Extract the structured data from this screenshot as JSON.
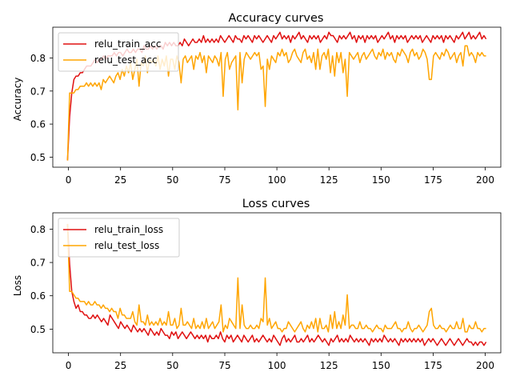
{
  "chart_data": [
    {
      "type": "line",
      "title": "Accuracy curves",
      "xlabel": "",
      "ylabel": "Accuracy",
      "xlim": [
        -6,
        207
      ],
      "ylim": [
        0.47,
        0.885
      ],
      "xticks": [
        0,
        25,
        50,
        75,
        100,
        125,
        150,
        175,
        200
      ],
      "yticks": [
        0.5,
        0.6,
        0.7,
        0.8
      ],
      "ytick_labels": [
        "0.5",
        "0.6",
        "0.7",
        "0.8"
      ],
      "grid": false,
      "legend_position": "top-left",
      "x": {
        "start": 1,
        "end": 200
      },
      "series": [
        {
          "name": "relu_train_acc",
          "color": "#e01010",
          "values": [
            0.49,
            0.62,
            0.69,
            0.73,
            0.74,
            0.74,
            0.75,
            0.75,
            0.76,
            0.77,
            0.77,
            0.77,
            0.78,
            0.79,
            0.78,
            0.79,
            0.79,
            0.8,
            0.79,
            0.8,
            0.8,
            0.8,
            0.81,
            0.8,
            0.81,
            0.81,
            0.8,
            0.81,
            0.82,
            0.81,
            0.81,
            0.82,
            0.81,
            0.82,
            0.82,
            0.81,
            0.83,
            0.82,
            0.82,
            0.83,
            0.82,
            0.83,
            0.82,
            0.83,
            0.83,
            0.82,
            0.84,
            0.83,
            0.84,
            0.83,
            0.84,
            0.83,
            0.83,
            0.84,
            0.83,
            0.85,
            0.84,
            0.83,
            0.84,
            0.85,
            0.84,
            0.84,
            0.85,
            0.84,
            0.86,
            0.84,
            0.85,
            0.84,
            0.85,
            0.84,
            0.85,
            0.84,
            0.86,
            0.85,
            0.84,
            0.85,
            0.86,
            0.85,
            0.84,
            0.86,
            0.85,
            0.85,
            0.84,
            0.86,
            0.85,
            0.86,
            0.85,
            0.84,
            0.86,
            0.85,
            0.86,
            0.85,
            0.84,
            0.85,
            0.86,
            0.85,
            0.84,
            0.86,
            0.85,
            0.86,
            0.87,
            0.85,
            0.86,
            0.85,
            0.86,
            0.84,
            0.86,
            0.85,
            0.86,
            0.87,
            0.85,
            0.86,
            0.85,
            0.84,
            0.86,
            0.85,
            0.86,
            0.85,
            0.86,
            0.84,
            0.85,
            0.86,
            0.85,
            0.87,
            0.86,
            0.86,
            0.85,
            0.84,
            0.86,
            0.85,
            0.86,
            0.85,
            0.86,
            0.87,
            0.85,
            0.86,
            0.84,
            0.86,
            0.85,
            0.86,
            0.84,
            0.86,
            0.85,
            0.86,
            0.85,
            0.86,
            0.84,
            0.85,
            0.86,
            0.85,
            0.86,
            0.87,
            0.85,
            0.86,
            0.84,
            0.86,
            0.85,
            0.86,
            0.85,
            0.86,
            0.84,
            0.85,
            0.86,
            0.85,
            0.86,
            0.85,
            0.86,
            0.84,
            0.85,
            0.86,
            0.85,
            0.84,
            0.86,
            0.85,
            0.86,
            0.85,
            0.86,
            0.84,
            0.86,
            0.85,
            0.86,
            0.85,
            0.84,
            0.86,
            0.85,
            0.86,
            0.87,
            0.85,
            0.86,
            0.87,
            0.85,
            0.86,
            0.85,
            0.86,
            0.87,
            0.85,
            0.86,
            0.85
          ]
        },
        {
          "name": "relu_test_acc",
          "color": "#ffa500",
          "values": [
            0.49,
            0.69,
            0.69,
            0.69,
            0.7,
            0.7,
            0.71,
            0.71,
            0.71,
            0.72,
            0.71,
            0.72,
            0.71,
            0.72,
            0.71,
            0.72,
            0.7,
            0.73,
            0.72,
            0.73,
            0.74,
            0.73,
            0.72,
            0.74,
            0.75,
            0.73,
            0.76,
            0.74,
            0.77,
            0.75,
            0.78,
            0.73,
            0.76,
            0.79,
            0.71,
            0.78,
            0.77,
            0.8,
            0.75,
            0.79,
            0.78,
            0.79,
            0.77,
            0.8,
            0.76,
            0.79,
            0.77,
            0.8,
            0.74,
            0.79,
            0.79,
            0.76,
            0.8,
            0.78,
            0.72,
            0.79,
            0.8,
            0.78,
            0.79,
            0.8,
            0.76,
            0.8,
            0.79,
            0.81,
            0.78,
            0.8,
            0.75,
            0.8,
            0.79,
            0.78,
            0.8,
            0.79,
            0.77,
            0.81,
            0.68,
            0.79,
            0.81,
            0.76,
            0.78,
            0.79,
            0.8,
            0.64,
            0.81,
            0.72,
            0.79,
            0.81,
            0.8,
            0.79,
            0.8,
            0.81,
            0.8,
            0.81,
            0.76,
            0.77,
            0.65,
            0.79,
            0.76,
            0.8,
            0.79,
            0.78,
            0.81,
            0.8,
            0.82,
            0.8,
            0.81,
            0.78,
            0.79,
            0.81,
            0.82,
            0.8,
            0.79,
            0.78,
            0.81,
            0.82,
            0.79,
            0.8,
            0.78,
            0.81,
            0.76,
            0.82,
            0.76,
            0.8,
            0.81,
            0.79,
            0.82,
            0.75,
            0.8,
            0.74,
            0.81,
            0.78,
            0.81,
            0.75,
            0.79,
            0.68,
            0.81,
            0.8,
            0.79,
            0.8,
            0.81,
            0.78,
            0.8,
            0.81,
            0.79,
            0.8,
            0.81,
            0.82,
            0.8,
            0.79,
            0.81,
            0.8,
            0.82,
            0.79,
            0.81,
            0.8,
            0.81,
            0.79,
            0.78,
            0.81,
            0.8,
            0.82,
            0.81,
            0.8,
            0.78,
            0.81,
            0.82,
            0.8,
            0.81,
            0.79,
            0.8,
            0.82,
            0.81,
            0.79,
            0.73,
            0.73,
            0.8,
            0.81,
            0.8,
            0.79,
            0.81,
            0.8,
            0.82,
            0.81,
            0.79,
            0.8,
            0.81,
            0.78,
            0.8,
            0.81,
            0.77,
            0.83,
            0.83,
            0.8,
            0.81,
            0.8,
            0.78,
            0.81,
            0.8,
            0.81,
            0.8,
            0.8
          ]
        }
      ]
    },
    {
      "type": "line",
      "title": "Loss curves",
      "xlabel": "",
      "ylabel": "Loss",
      "xlim": [
        -6,
        207
      ],
      "ylim": [
        0.428,
        0.843
      ],
      "xticks": [
        0,
        25,
        50,
        75,
        100,
        125,
        150,
        175,
        200
      ],
      "yticks": [
        0.5,
        0.6,
        0.7,
        0.8
      ],
      "ytick_labels": [
        "0.5",
        "0.6",
        "0.7",
        "0.8"
      ],
      "grid": false,
      "legend_position": "top-left",
      "x": {
        "start": 1,
        "end": 200
      },
      "series": [
        {
          "name": "relu_train_loss",
          "color": "#e01010",
          "values": [
            0.81,
            0.69,
            0.61,
            0.58,
            0.56,
            0.57,
            0.55,
            0.55,
            0.54,
            0.54,
            0.53,
            0.53,
            0.54,
            0.53,
            0.54,
            0.53,
            0.52,
            0.53,
            0.52,
            0.51,
            0.54,
            0.53,
            0.52,
            0.51,
            0.5,
            0.52,
            0.51,
            0.5,
            0.51,
            0.5,
            0.49,
            0.51,
            0.5,
            0.49,
            0.5,
            0.49,
            0.5,
            0.49,
            0.48,
            0.5,
            0.49,
            0.48,
            0.49,
            0.48,
            0.5,
            0.49,
            0.48,
            0.48,
            0.47,
            0.49,
            0.48,
            0.49,
            0.47,
            0.48,
            0.49,
            0.48,
            0.47,
            0.48,
            0.49,
            0.48,
            0.47,
            0.48,
            0.47,
            0.48,
            0.47,
            0.48,
            0.46,
            0.48,
            0.47,
            0.47,
            0.48,
            0.47,
            0.49,
            0.47,
            0.46,
            0.48,
            0.47,
            0.48,
            0.46,
            0.47,
            0.48,
            0.47,
            0.46,
            0.48,
            0.47,
            0.46,
            0.47,
            0.48,
            0.46,
            0.47,
            0.46,
            0.47,
            0.48,
            0.47,
            0.46,
            0.47,
            0.46,
            0.48,
            0.47,
            0.46,
            0.45,
            0.47,
            0.48,
            0.46,
            0.47,
            0.46,
            0.47,
            0.48,
            0.46,
            0.46,
            0.47,
            0.46,
            0.47,
            0.48,
            0.46,
            0.47,
            0.46,
            0.47,
            0.48,
            0.47,
            0.46,
            0.47,
            0.46,
            0.45,
            0.47,
            0.46,
            0.47,
            0.48,
            0.46,
            0.47,
            0.46,
            0.47,
            0.46,
            0.48,
            0.47,
            0.46,
            0.47,
            0.46,
            0.47,
            0.46,
            0.47,
            0.46,
            0.45,
            0.47,
            0.46,
            0.47,
            0.46,
            0.47,
            0.46,
            0.48,
            0.47,
            0.46,
            0.47,
            0.46,
            0.47,
            0.46,
            0.45,
            0.47,
            0.46,
            0.47,
            0.46,
            0.47,
            0.46,
            0.47,
            0.46,
            0.47,
            0.46,
            0.47,
            0.45,
            0.46,
            0.47,
            0.46,
            0.47,
            0.46,
            0.45,
            0.46,
            0.47,
            0.46,
            0.45,
            0.46,
            0.47,
            0.46,
            0.45,
            0.46,
            0.47,
            0.46,
            0.45,
            0.46,
            0.47,
            0.46,
            0.46,
            0.45,
            0.46,
            0.45,
            0.46,
            0.46,
            0.45,
            0.46
          ]
        },
        {
          "name": "relu_test_loss",
          "color": "#ffa500",
          "values": [
            0.81,
            0.61,
            0.61,
            0.6,
            0.59,
            0.59,
            0.58,
            0.58,
            0.58,
            0.57,
            0.58,
            0.57,
            0.57,
            0.58,
            0.57,
            0.57,
            0.56,
            0.57,
            0.56,
            0.56,
            0.55,
            0.56,
            0.55,
            0.55,
            0.53,
            0.56,
            0.54,
            0.54,
            0.53,
            0.53,
            0.53,
            0.55,
            0.52,
            0.51,
            0.57,
            0.52,
            0.52,
            0.51,
            0.54,
            0.51,
            0.52,
            0.51,
            0.52,
            0.51,
            0.53,
            0.51,
            0.52,
            0.51,
            0.55,
            0.51,
            0.51,
            0.53,
            0.5,
            0.51,
            0.56,
            0.51,
            0.51,
            0.52,
            0.51,
            0.5,
            0.53,
            0.5,
            0.51,
            0.5,
            0.52,
            0.5,
            0.53,
            0.5,
            0.51,
            0.52,
            0.5,
            0.51,
            0.52,
            0.57,
            0.49,
            0.51,
            0.5,
            0.53,
            0.52,
            0.51,
            0.5,
            0.65,
            0.5,
            0.57,
            0.51,
            0.5,
            0.5,
            0.51,
            0.5,
            0.5,
            0.51,
            0.5,
            0.53,
            0.52,
            0.65,
            0.51,
            0.53,
            0.5,
            0.51,
            0.52,
            0.5,
            0.5,
            0.49,
            0.5,
            0.5,
            0.52,
            0.51,
            0.5,
            0.49,
            0.5,
            0.51,
            0.52,
            0.5,
            0.49,
            0.51,
            0.5,
            0.52,
            0.5,
            0.53,
            0.49,
            0.53,
            0.5,
            0.5,
            0.51,
            0.49,
            0.54,
            0.5,
            0.55,
            0.5,
            0.52,
            0.5,
            0.54,
            0.51,
            0.6,
            0.5,
            0.51,
            0.51,
            0.5,
            0.5,
            0.52,
            0.5,
            0.5,
            0.51,
            0.5,
            0.5,
            0.49,
            0.5,
            0.51,
            0.5,
            0.5,
            0.49,
            0.51,
            0.5,
            0.5,
            0.5,
            0.51,
            0.52,
            0.5,
            0.5,
            0.49,
            0.5,
            0.5,
            0.52,
            0.5,
            0.49,
            0.5,
            0.5,
            0.51,
            0.5,
            0.49,
            0.5,
            0.51,
            0.55,
            0.56,
            0.51,
            0.5,
            0.5,
            0.51,
            0.5,
            0.5,
            0.49,
            0.5,
            0.51,
            0.5,
            0.5,
            0.52,
            0.5,
            0.5,
            0.53,
            0.49,
            0.49,
            0.51,
            0.5,
            0.5,
            0.52,
            0.5,
            0.5,
            0.49,
            0.5,
            0.5
          ]
        }
      ]
    }
  ]
}
